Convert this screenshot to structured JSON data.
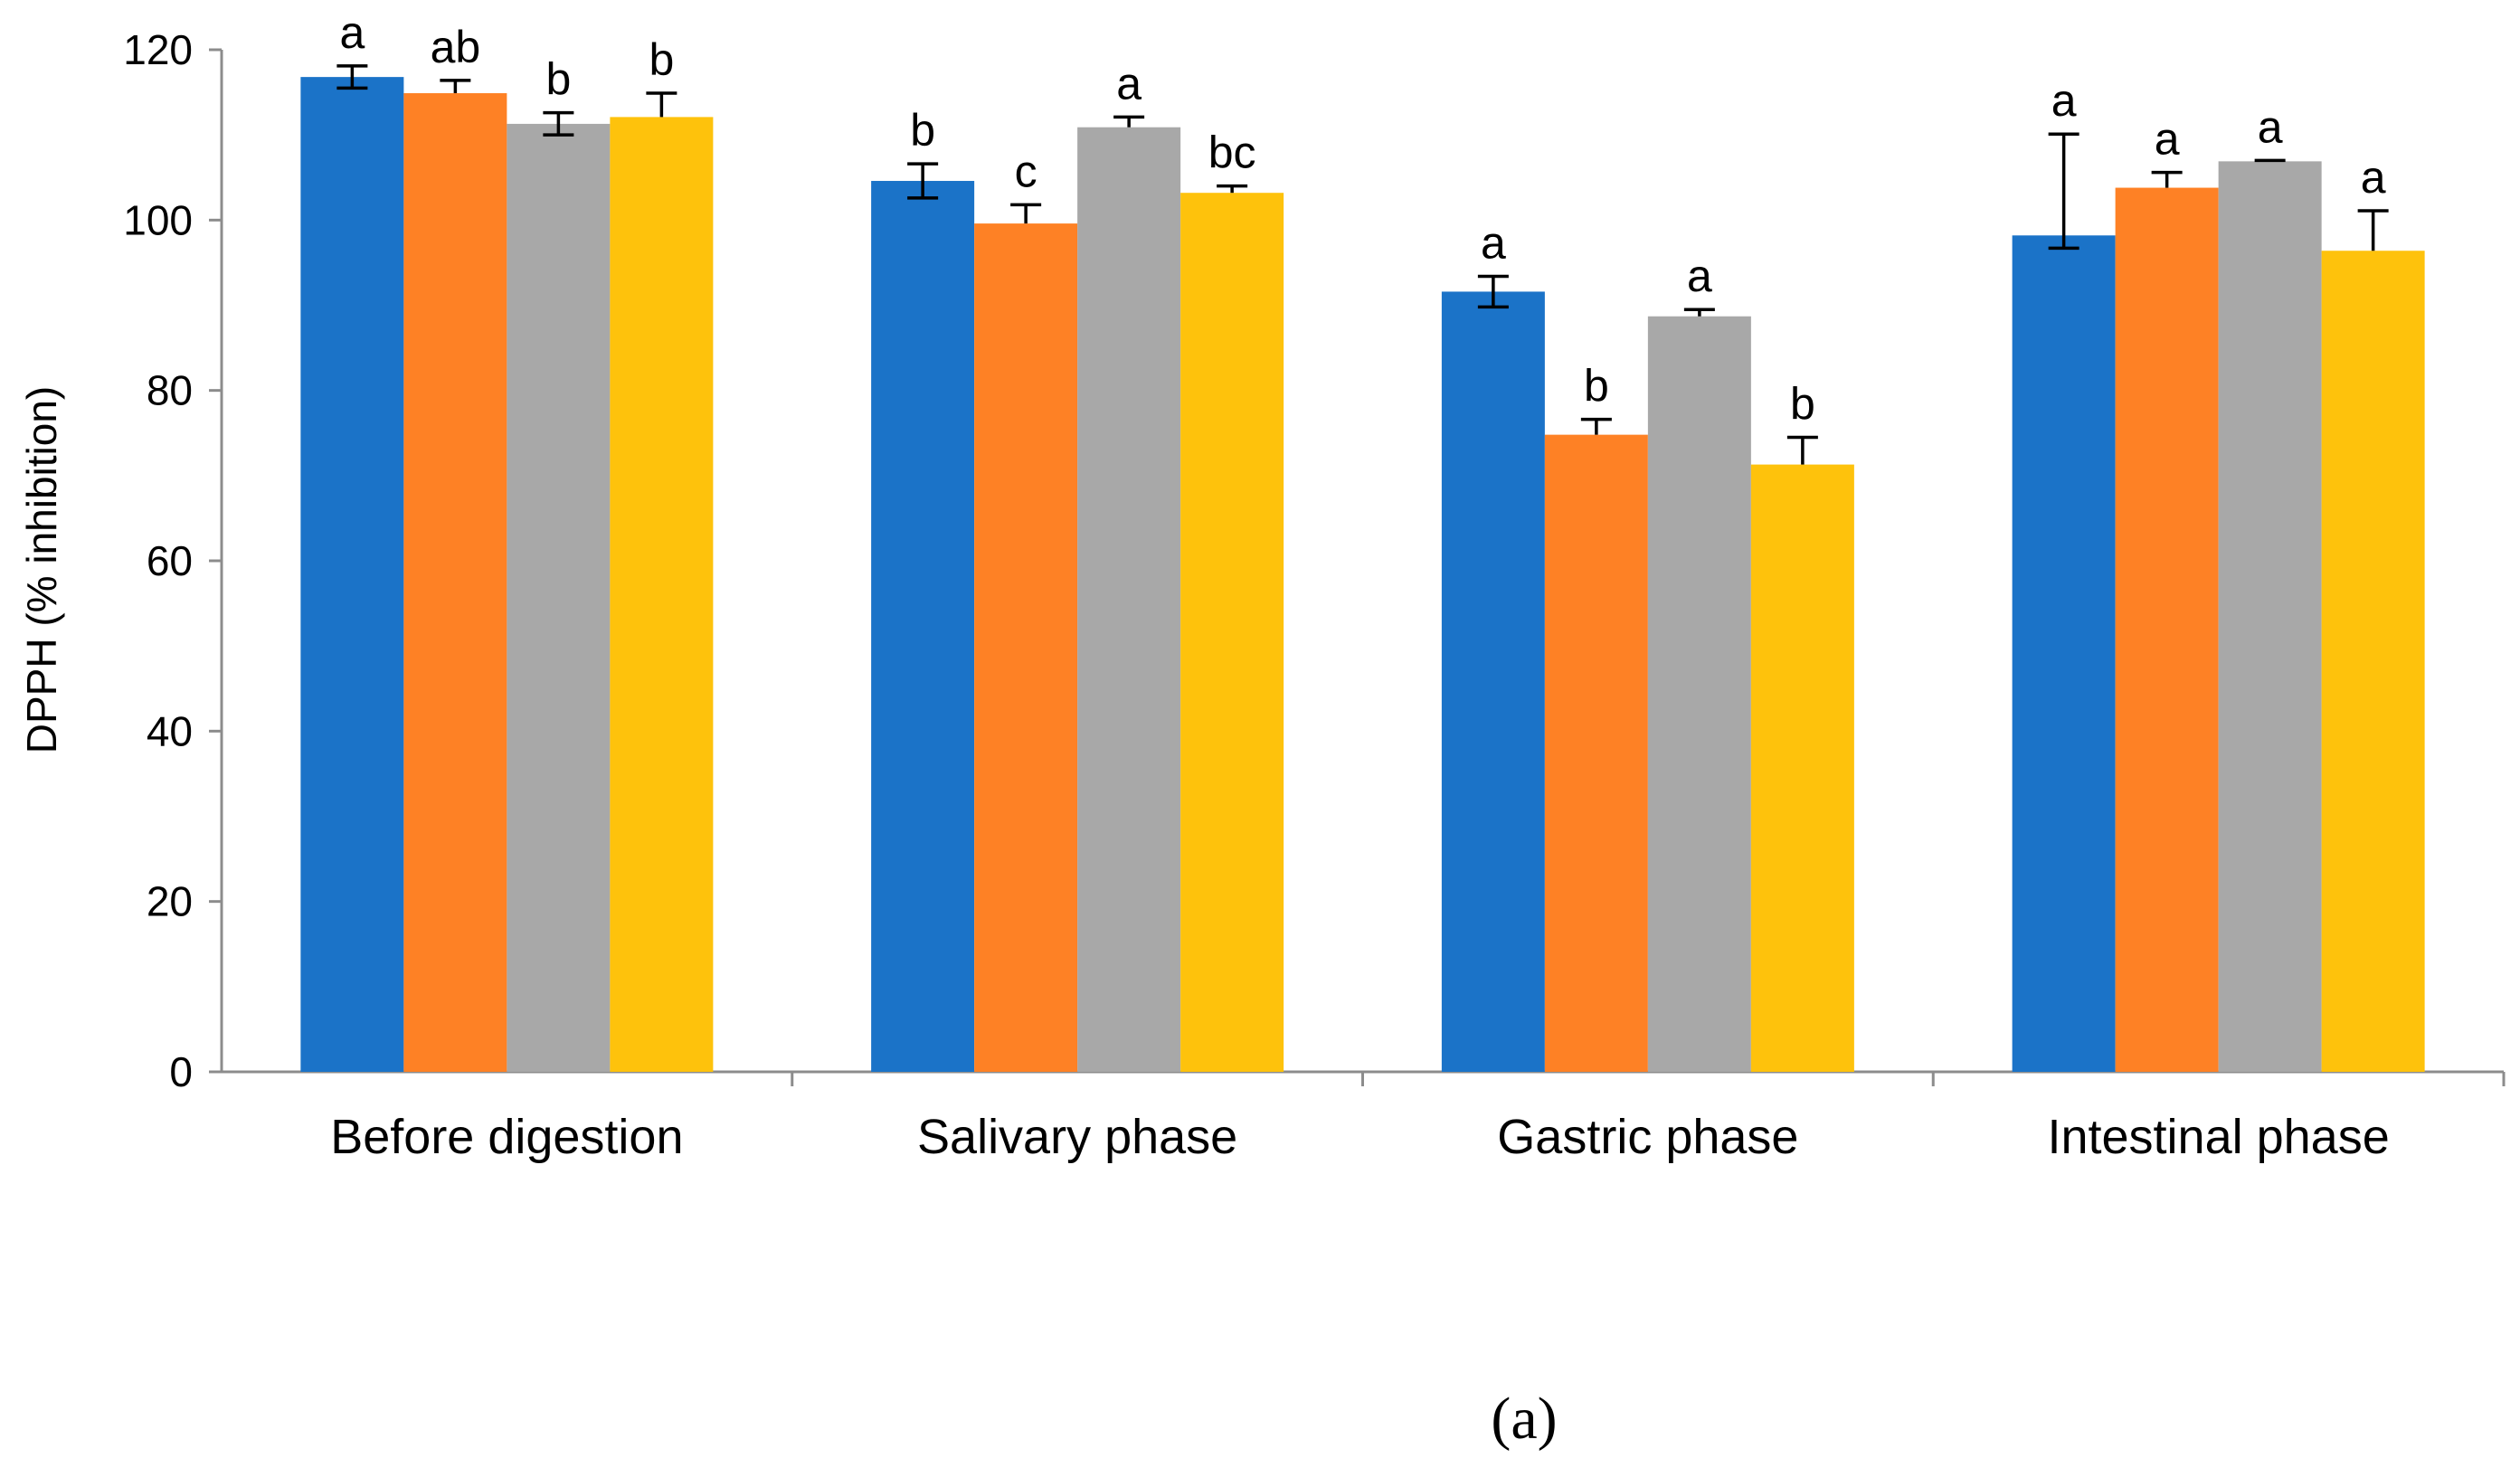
{
  "chart_data": {
    "type": "bar",
    "title": "",
    "xlabel": "",
    "ylabel": "DPPH  (% inhibition)",
    "ylim": [
      0,
      120
    ],
    "yticks": [
      0,
      20,
      40,
      60,
      80,
      100,
      120
    ],
    "grid": false,
    "legend": "none",
    "categories": [
      "Before digestion",
      "Salivary phase",
      "Gastric phase",
      "Intestinal phase"
    ],
    "colors": [
      "#1b73c8",
      "#fe8125",
      "#a8a8a8",
      "#fec20c"
    ],
    "series": [
      {
        "values": [
          116.8,
          104.6,
          91.6,
          98.2
        ],
        "errors": [
          1.3,
          2.0,
          1.8,
          1.5
        ],
        "labels": [
          "a",
          "b",
          "a",
          "a"
        ]
      },
      {
        "values": [
          114.9,
          99.6,
          74.8,
          103.8
        ],
        "errors": [
          1.5,
          2.2,
          1.8,
          1.8
        ],
        "labels": [
          "ab",
          "c",
          "b",
          "a"
        ]
      },
      {
        "values": [
          111.3,
          110.9,
          88.7,
          106.9
        ],
        "errors": [
          1.3,
          1.2,
          0.8,
          0.1
        ],
        "labels": [
          "b",
          "a",
          "a",
          "a"
        ]
      },
      {
        "values": [
          112.1,
          103.2,
          71.3,
          96.4
        ],
        "errors": [
          2.8,
          0.8,
          3.2,
          4.7
        ],
        "labels": [
          "b",
          "bc",
          "b",
          "a"
        ]
      }
    ],
    "error_display": [
      [
        "both",
        "both",
        "both",
        "both"
      ],
      [
        "plus",
        "plus",
        "plus",
        "plus"
      ],
      [
        "both",
        "plus",
        "plus",
        "plus"
      ],
      [
        "plus",
        "plus",
        "plus",
        "plus"
      ]
    ],
    "extra_error_up": [
      0,
      0,
      0,
      11.9
    ],
    "annotation": "(a)"
  }
}
